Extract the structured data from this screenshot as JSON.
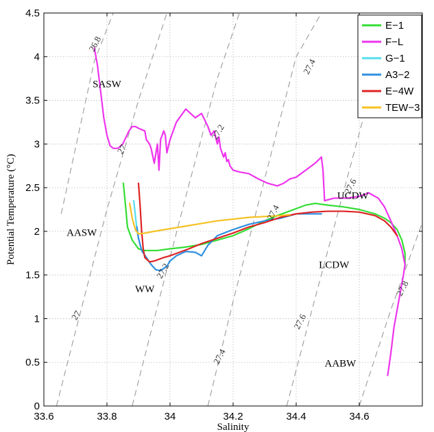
{
  "chart_data": {
    "type": "line",
    "xlabel": "Salinity",
    "ylabel": "Potential Temperature (°C)",
    "xlim": [
      33.6,
      34.8
    ],
    "ylim": [
      0,
      4.5
    ],
    "x_ticks": [
      "33.6",
      "33.8",
      "34",
      "34.2",
      "34.4",
      "34.6"
    ],
    "y_ticks": [
      "0",
      "0.5",
      "1",
      "1.5",
      "2",
      "2.5",
      "3",
      "3.5",
      "4",
      "4.5"
    ],
    "grid": true,
    "legend_position": "top-right",
    "series": [
      {
        "name": "E−1",
        "color": "#33dd33",
        "x": [
          33.852,
          33.86,
          33.865,
          33.88,
          33.9,
          33.92,
          33.96,
          34.0,
          34.05,
          34.1,
          34.15,
          34.2,
          34.25,
          34.3,
          34.34,
          34.37,
          34.4,
          34.43,
          34.46,
          34.5,
          34.55,
          34.6,
          34.65,
          34.68,
          34.7,
          34.72,
          34.735,
          34.745,
          34.745
        ],
        "y": [
          2.55,
          2.25,
          2.05,
          1.9,
          1.8,
          1.78,
          1.78,
          1.8,
          1.82,
          1.85,
          1.9,
          1.95,
          2.03,
          2.12,
          2.18,
          2.22,
          2.26,
          2.3,
          2.32,
          2.3,
          2.28,
          2.25,
          2.2,
          2.15,
          2.1,
          2.02,
          1.9,
          1.75,
          1.6
        ]
      },
      {
        "name": "F−L",
        "color": "#ee33ee",
        "x": [
          33.76,
          33.77,
          33.78,
          33.79,
          33.8,
          33.81,
          33.82,
          33.835,
          33.85,
          33.87,
          33.88,
          33.89,
          33.9,
          33.92,
          33.925,
          33.935,
          33.94,
          33.95,
          33.96,
          33.965,
          33.97,
          33.98,
          33.985,
          33.99,
          34.0,
          34.02,
          34.05,
          34.08,
          34.1,
          34.12,
          34.13,
          34.14,
          34.15,
          34.155,
          34.16,
          34.17,
          34.175,
          34.18,
          34.185,
          34.19,
          34.2,
          34.22,
          34.25,
          34.28,
          34.31,
          34.34,
          34.36,
          34.38,
          34.4,
          34.43,
          34.46,
          34.48,
          34.485,
          34.49,
          34.52,
          34.56,
          34.6,
          34.63,
          34.66,
          34.68,
          34.7,
          34.72,
          34.735,
          34.745,
          34.74,
          34.73,
          34.72,
          34.71,
          34.7,
          34.69
        ],
        "y": [
          4.1,
          3.9,
          3.6,
          3.3,
          3.1,
          2.98,
          2.95,
          2.95,
          3.0,
          3.15,
          3.2,
          3.2,
          3.18,
          3.15,
          3.05,
          3.0,
          2.95,
          2.78,
          3.0,
          2.7,
          3.05,
          3.15,
          3.1,
          2.9,
          3.05,
          3.25,
          3.4,
          3.3,
          3.35,
          3.2,
          3.1,
          3.15,
          3.0,
          3.08,
          2.95,
          2.85,
          2.9,
          2.8,
          2.82,
          2.75,
          2.7,
          2.68,
          2.66,
          2.6,
          2.55,
          2.52,
          2.55,
          2.6,
          2.62,
          2.7,
          2.78,
          2.85,
          2.7,
          2.35,
          2.38,
          2.38,
          2.4,
          2.44,
          2.38,
          2.28,
          2.12,
          1.95,
          1.8,
          1.62,
          1.5,
          1.3,
          1.1,
          0.9,
          0.6,
          0.35
        ]
      },
      {
        "name": "G−1",
        "color": "#55ddee",
        "x": [
          33.885,
          33.888,
          33.892,
          33.896,
          33.9,
          33.905
        ],
        "y": [
          2.35,
          2.25,
          2.12,
          2.0,
          1.92,
          1.85
        ]
      },
      {
        "name": "A3−2",
        "color": "#2f8fe0",
        "x": [
          33.895,
          33.9,
          33.91,
          33.925,
          33.94,
          33.955,
          33.97,
          33.99,
          34.0,
          34.02,
          34.05,
          34.08,
          34.1,
          34.12,
          34.15,
          34.2,
          34.25,
          34.3,
          34.35,
          34.38,
          34.4,
          34.45,
          34.48
        ],
        "y": [
          2.05,
          1.92,
          1.78,
          1.7,
          1.62,
          1.56,
          1.55,
          1.6,
          1.66,
          1.72,
          1.77,
          1.76,
          1.72,
          1.84,
          1.95,
          2.02,
          2.08,
          2.12,
          2.15,
          2.18,
          2.2,
          2.2,
          2.2
        ]
      },
      {
        "name": "E−4W",
        "color": "#dd2222",
        "x": [
          33.9,
          33.905,
          33.91,
          33.915,
          33.92,
          33.935,
          33.95,
          33.98,
          34.0,
          34.03,
          34.06,
          34.1,
          34.15,
          34.2,
          34.25,
          34.3,
          34.35,
          34.4,
          34.45,
          34.5,
          34.55,
          34.6,
          34.65,
          34.68,
          34.7,
          34.72
        ],
        "y": [
          2.55,
          2.3,
          2.0,
          1.8,
          1.7,
          1.65,
          1.66,
          1.7,
          1.72,
          1.76,
          1.8,
          1.86,
          1.92,
          1.98,
          2.05,
          2.1,
          2.16,
          2.2,
          2.22,
          2.23,
          2.23,
          2.22,
          2.18,
          2.12,
          2.05,
          1.95
        ]
      },
      {
        "name": "TEW−3",
        "color": "#f5c020",
        "x": [
          33.872,
          33.88,
          33.89,
          33.9,
          33.92,
          33.95,
          34.0,
          34.05,
          34.1,
          34.15,
          34.2,
          34.25,
          34.3,
          34.35,
          34.38
        ],
        "y": [
          2.32,
          2.15,
          2.02,
          1.97,
          1.98,
          2.0,
          2.03,
          2.06,
          2.09,
          2.12,
          2.14,
          2.16,
          2.17,
          2.18,
          2.19
        ]
      }
    ],
    "density_contours": [
      {
        "label": "26.8",
        "x": [
          33.655,
          33.7,
          33.76,
          33.82,
          33.88
        ],
        "y": [
          2.2,
          2.95,
          3.95,
          4.5,
          4.5
        ]
      },
      {
        "label": "27",
        "x": [
          33.64,
          33.7,
          33.8,
          33.9,
          33.99
        ],
        "y": [
          0.0,
          0.85,
          2.25,
          3.5,
          4.5
        ]
      },
      {
        "label": "27.2",
        "x": [
          33.88,
          33.95,
          34.05,
          34.15,
          34.22
        ],
        "y": [
          0.0,
          1.0,
          2.4,
          3.75,
          4.5
        ]
      },
      {
        "label": "27.4",
        "x": [
          34.12,
          34.2,
          34.3,
          34.4,
          34.48
        ],
        "y": [
          0.0,
          1.2,
          2.6,
          4.0,
          4.5
        ]
      },
      {
        "label": "27.6",
        "x": [
          34.37,
          34.45,
          34.55,
          34.65
        ],
        "y": [
          0.0,
          1.1,
          2.45,
          3.8
        ]
      },
      {
        "label": "27.8",
        "x": [
          34.6,
          34.65,
          34.7,
          34.75,
          34.8
        ],
        "y": [
          0.0,
          0.55,
          1.1,
          1.6,
          2.1
        ]
      }
    ],
    "contour_labels": [
      {
        "text": "26.8",
        "x": 33.77,
        "y": 4.13,
        "angle": 62
      },
      {
        "text": "27",
        "x": 33.855,
        "y": 2.92,
        "angle": 58
      },
      {
        "text": "27",
        "x": 33.71,
        "y": 1.02,
        "angle": 58
      },
      {
        "text": "27.2",
        "x": 34.16,
        "y": 3.12,
        "angle": 60
      },
      {
        "text": "27.2",
        "x": 33.985,
        "y": 1.53,
        "angle": 60
      },
      {
        "text": "27.4",
        "x": 34.45,
        "y": 3.87,
        "angle": 62
      },
      {
        "text": "27.4",
        "x": 34.335,
        "y": 2.2,
        "angle": 62
      },
      {
        "text": "27.4",
        "x": 34.165,
        "y": 0.55,
        "angle": 62
      },
      {
        "text": "27.6",
        "x": 34.58,
        "y": 2.5,
        "angle": 62
      },
      {
        "text": "27.6",
        "x": 34.42,
        "y": 0.95,
        "angle": 62
      },
      {
        "text": "27.8",
        "x": 34.745,
        "y": 1.33,
        "angle": 62
      }
    ],
    "annotations": [
      {
        "text": "SASW",
        "x": 33.8,
        "y": 3.65
      },
      {
        "text": "AASW",
        "x": 33.72,
        "y": 1.95
      },
      {
        "text": "WW",
        "x": 33.92,
        "y": 1.3
      },
      {
        "text": "UCDW",
        "x": 34.58,
        "y": 2.37
      },
      {
        "text": "LCDW",
        "x": 34.52,
        "y": 1.58
      },
      {
        "text": "AABW",
        "x": 34.54,
        "y": 0.45
      }
    ]
  }
}
